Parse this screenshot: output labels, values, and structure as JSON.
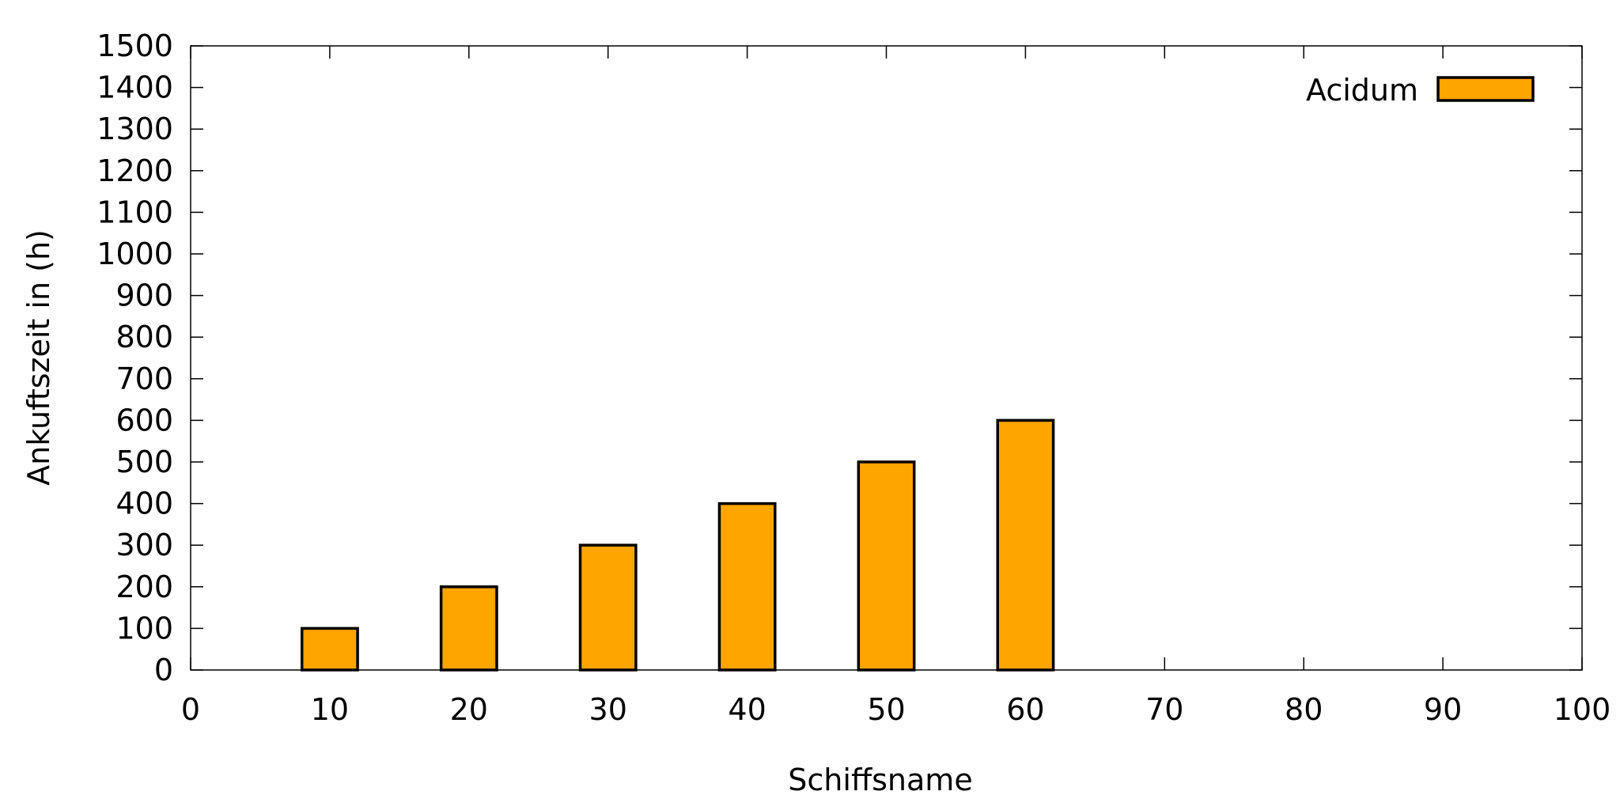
{
  "chart_data": {
    "type": "bar",
    "title": "",
    "xlabel": "Schiffsname",
    "ylabel": "Ankuftszeit in (h)",
    "xlim": [
      0,
      100
    ],
    "ylim": [
      0,
      1500
    ],
    "x_ticks": [
      "0",
      "10",
      "20",
      "30",
      "40",
      "50",
      "60",
      "70",
      "80",
      "90",
      "100"
    ],
    "y_ticks": [
      "0",
      "100",
      "200",
      "300",
      "400",
      "500",
      "600",
      "700",
      "800",
      "900",
      "1000",
      "1100",
      "1200",
      "1300",
      "1400",
      "1500"
    ],
    "grid": false,
    "legend_position": "top-right",
    "bar_width": 4,
    "series": [
      {
        "name": "Acidum",
        "color": "#FFA500",
        "x": [
          10,
          20,
          30,
          40,
          50,
          60
        ],
        "values": [
          100,
          200,
          300,
          400,
          500,
          600
        ]
      }
    ]
  }
}
